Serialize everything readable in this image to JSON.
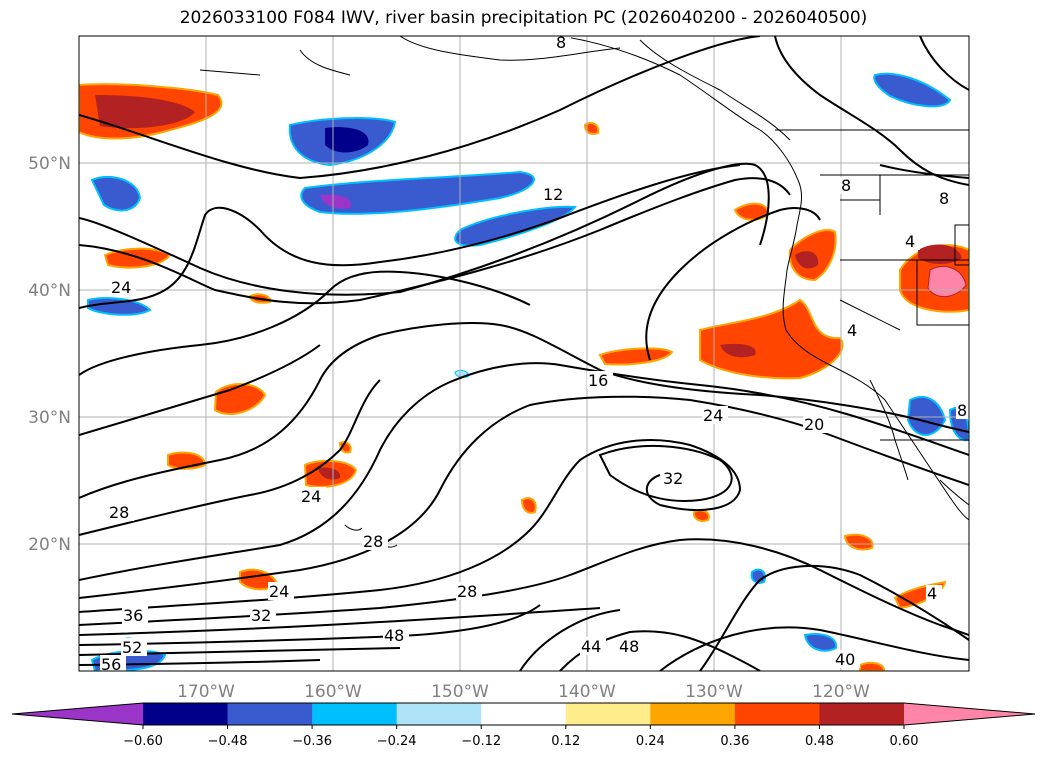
{
  "title": "2026033100 F084 IWV, river basin precipitation PC (2026040200 - 2026040500)",
  "lat_labels": [
    "50°N",
    "40°N",
    "30°N",
    "20°N"
  ],
  "lon_labels": [
    "170°W",
    "160°W",
    "150°W",
    "140°W",
    "130°W",
    "120°W"
  ],
  "contour_labels": [
    "8",
    "8",
    "8",
    "12",
    "16",
    "24",
    "20",
    "32",
    "28",
    "24",
    "24",
    "28",
    "36",
    "32",
    "28",
    "48",
    "44",
    "48",
    "40",
    "52",
    "56",
    "24",
    "4",
    "4",
    "8",
    "4"
  ],
  "colorbar": {
    "ticks": [
      "−0.60",
      "−0.48",
      "−0.36",
      "−0.24",
      "−0.12",
      "0.12",
      "0.24",
      "0.36",
      "0.48",
      "0.60"
    ],
    "colors": [
      "#9a35c8",
      "#00008b",
      "#3a5bd0",
      "#00bfff",
      "#aee3f8",
      "#ffffff",
      "#ffec8b",
      "#ffa500",
      "#ff4500",
      "#b22222",
      "#ff85a8"
    ]
  },
  "colors": {
    "ocean": "#ffffff",
    "grid": "#b0b0b0",
    "contour": "#000000",
    "tick_label": "#808080"
  }
}
